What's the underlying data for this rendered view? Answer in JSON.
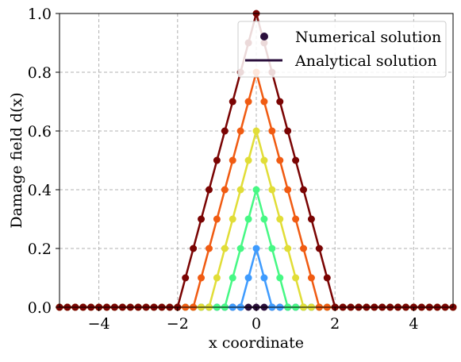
{
  "chart_data": {
    "type": "line",
    "title": "",
    "xlabel": "x coordinate",
    "ylabel": "Damage field d(x)",
    "xlim": [
      -5,
      5
    ],
    "ylim": [
      0,
      1
    ],
    "xticks": [
      "−4",
      "−2",
      "0",
      "2",
      "4"
    ],
    "xtick_values": [
      -4,
      -2,
      0,
      2,
      4
    ],
    "yticks": [
      "0.0",
      "0.2",
      "0.4",
      "0.6",
      "0.8",
      "1.0"
    ],
    "ytick_values": [
      0,
      0.2,
      0.4,
      0.6,
      0.8,
      1.0
    ],
    "grid": true,
    "legend_position": "top-right",
    "legend": [
      {
        "label": "Numerical solution",
        "marker": "dot"
      },
      {
        "label": "Analytical solution",
        "marker": "line"
      }
    ],
    "x_sample_spacing": 0.2,
    "series": [
      {
        "peak": 0.0,
        "color": "#2b0f3c"
      },
      {
        "peak": 0.2,
        "color": "#3e9bfe"
      },
      {
        "peak": 0.4,
        "color": "#46f884"
      },
      {
        "peak": 0.6,
        "color": "#e1dd37"
      },
      {
        "peak": 0.8,
        "color": "#f05b12"
      },
      {
        "peak": 1.0,
        "color": "#7a0403"
      }
    ]
  }
}
